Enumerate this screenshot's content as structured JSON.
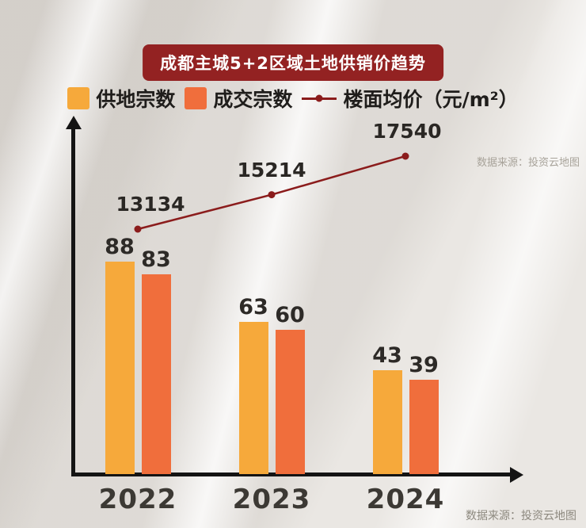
{
  "title": {
    "text": "成都主城5+2区域土地供销价趋势"
  },
  "legend": {
    "items": [
      {
        "label": "供地宗数",
        "color": "#F6A93B",
        "type": "bar"
      },
      {
        "label": "成交宗数",
        "color": "#F06E3C",
        "type": "bar"
      },
      {
        "label": "楼面均价（元/m²）",
        "color": "#8B1C1C",
        "type": "line"
      }
    ]
  },
  "watermark": "数据来源：投资云地图",
  "source": "数据来源：投资云地图",
  "chart_data": {
    "type": "bar+line",
    "title": "成都主城5+2区域土地供销价趋势",
    "categories": [
      "2022",
      "2023",
      "2024"
    ],
    "series": [
      {
        "name": "供地宗数",
        "type": "bar",
        "color": "#F6A93B",
        "values": [
          88,
          63,
          43
        ]
      },
      {
        "name": "成交宗数",
        "type": "bar",
        "color": "#F06E3C",
        "values": [
          83,
          60,
          39
        ]
      },
      {
        "name": "楼面均价（元/m²）",
        "type": "line",
        "color": "#8B1C1C",
        "values": [
          13134,
          15214,
          17540
        ]
      }
    ],
    "legend_position": "top",
    "grid": false,
    "source": "数据来源：投资云地图"
  }
}
